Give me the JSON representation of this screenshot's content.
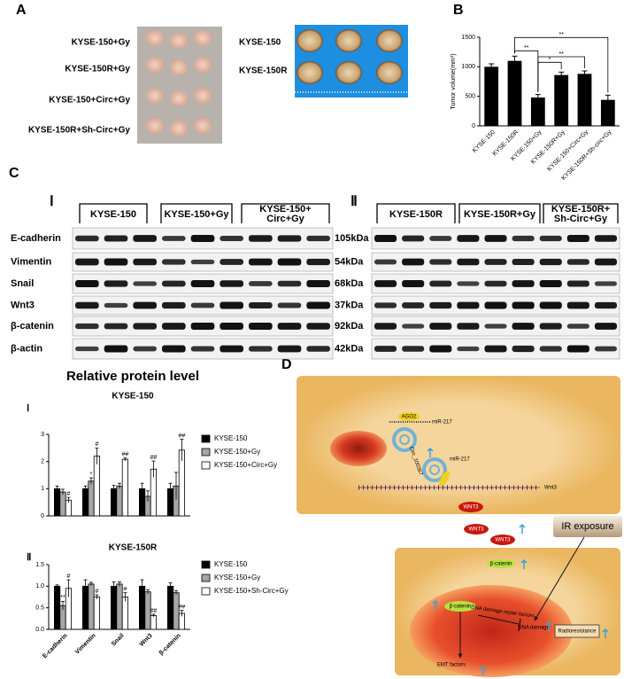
{
  "panel_labels": [
    "A",
    "B",
    "C",
    "D"
  ],
  "panel_a": {
    "left_labels": [
      "KYSE-150+Gy",
      "KYSE-150R+Gy",
      "KYSE-150+Circ+Gy",
      "KYSE-150R+Sh-Circ+Gy"
    ],
    "right_labels": [
      "KYSE-150",
      "KYSE-150R"
    ]
  },
  "chart_data": [
    {
      "type": "bar",
      "ylabel": "Tumor volume(mm³)",
      "categories": [
        "KYSE-150",
        "KYSE-150R",
        "KYSE-150+Gy",
        "KYSE-150R+Gy",
        "KYSE-150+Circ+Gy",
        "KYSE-150R+Sh-circ+Gy"
      ],
      "values": [
        1000,
        1100,
        480,
        860,
        880,
        440
      ],
      "errors": [
        50,
        80,
        50,
        50,
        50,
        80
      ],
      "color": "#000000",
      "ylim": [
        0,
        1500
      ],
      "yticks": [
        0,
        500,
        1000,
        1500
      ],
      "significance": [
        {
          "label": "**",
          "between": [
            "KYSE-150R",
            "KYSE-150+Gy"
          ]
        },
        {
          "label": "*",
          "between": [
            "KYSE-150+Gy",
            "KYSE-150R+Gy"
          ]
        },
        {
          "label": "**",
          "between": [
            "KYSE-150+Gy",
            "KYSE-150+Circ+Gy"
          ]
        },
        {
          "label": "**",
          "between": [
            "KYSE-150R",
            "KYSE-150R+Sh-circ+Gy"
          ]
        }
      ]
    },
    {
      "type": "grouped_bar",
      "heading": "Relative protein level",
      "panel": "Ⅰ",
      "title": "KYSE-150",
      "categories": [
        null,
        null,
        null,
        null,
        null
      ],
      "ylim": [
        0,
        3
      ],
      "yticks": [
        0,
        1,
        2,
        3
      ],
      "series": [
        {
          "name": "KYSE-150",
          "color": "#000000",
          "values": [
            1,
            1,
            1,
            1,
            1
          ],
          "errors": [
            0.1,
            0.1,
            0.12,
            0.2,
            0.2
          ],
          "annotations": [
            null,
            null,
            null,
            null,
            null
          ]
        },
        {
          "name": "KYSE-150+Gy",
          "color": "#a6a6a6",
          "values": [
            0.88,
            1.28,
            1.1,
            0.72,
            1.1
          ],
          "errors": [
            0.1,
            0.12,
            0.1,
            0.2,
            0.5
          ],
          "annotations": [
            null,
            "*",
            null,
            null,
            null
          ]
        },
        {
          "name": "KYSE-150+Circ+Gy",
          "color": "#ffffff",
          "values": [
            0.58,
            2.2,
            2.08,
            1.72,
            2.42
          ],
          "errors": [
            0.1,
            0.3,
            0.05,
            0.3,
            0.4
          ],
          "annotations": [
            "#",
            "#",
            "##",
            "##",
            "##"
          ]
        }
      ]
    },
    {
      "type": "grouped_bar",
      "panel": "Ⅱ",
      "title": "KYSE-150R",
      "categories": [
        "E-cadherin",
        "Vimentin",
        "Snail",
        "Wnt3",
        "β-catenin"
      ],
      "ylim": [
        0,
        1.5
      ],
      "yticks": [
        {
          "value": 0,
          "label": "0.0"
        },
        {
          "value": 0.5,
          "label": "0.5"
        },
        {
          "value": 1,
          "label": "1.0"
        },
        {
          "value": 1.5,
          "label": "1.5"
        }
      ],
      "series": [
        {
          "name": "KYSE-150",
          "color": "#000000",
          "values": [
            1,
            1,
            1,
            1,
            1
          ],
          "errors": [
            0.03,
            0.15,
            0.1,
            0.15,
            0.08
          ],
          "annotations": [
            null,
            null,
            null,
            null,
            null
          ]
        },
        {
          "name": "KYSE-150+Gy",
          "color": "#a6a6a6",
          "values": [
            0.55,
            1.05,
            1.05,
            0.87,
            0.85
          ],
          "errors": [
            0.1,
            0.04,
            0.05,
            0.05,
            0.05
          ],
          "annotations": [
            "**",
            null,
            null,
            null,
            null
          ]
        },
        {
          "name": "KYSE-150+Sh-Circ+Gy",
          "color": "#ffffff",
          "values": [
            0.95,
            0.75,
            0.75,
            0.32,
            0.37
          ],
          "errors": [
            0.2,
            0.05,
            0.1,
            0.03,
            0.07
          ],
          "annotations": [
            "#",
            "#",
            "#",
            "##",
            "##"
          ]
        }
      ]
    }
  ],
  "blots": {
    "rows": [
      "E-cadherin",
      "Vimentin",
      "Snail",
      "Wnt3",
      "β-catenin",
      "β-actin"
    ],
    "sizes": [
      "105kDa",
      "54kDa",
      "68kDa",
      "37kDa",
      "92kDa",
      "42kDa"
    ],
    "groups": [
      {
        "label": "Ⅰ",
        "headers": [
          [
            "KYSE-150"
          ],
          [
            "KYSE-150+Gy"
          ],
          [
            "KYSE-150+",
            "Circ+Gy"
          ]
        ]
      },
      {
        "label": "Ⅱ",
        "headers": [
          [
            "KYSE-150R"
          ],
          [
            "KYSE-150R+Gy"
          ],
          [
            "KYSE-150R+",
            "Sh-Circ+Gy"
          ]
        ]
      }
    ]
  },
  "diagram": {
    "ago2": "AGO2",
    "mir_a": "miR-217",
    "mir_b": "miR-217",
    "circ": "Circ_100367",
    "wnt3_gene": "Wnt3",
    "wnt3_a": "WNT3",
    "wnt3_b": "WNT3",
    "wnt3_c": "WNT3",
    "ir": "IR exposure",
    "bcat_a": "β-catenin",
    "bcat_b": "β-catenin",
    "repair": "DNA damage repair factors",
    "damage": "DNA damage",
    "emt": "EMT factors",
    "radio": "Radioresistance"
  }
}
